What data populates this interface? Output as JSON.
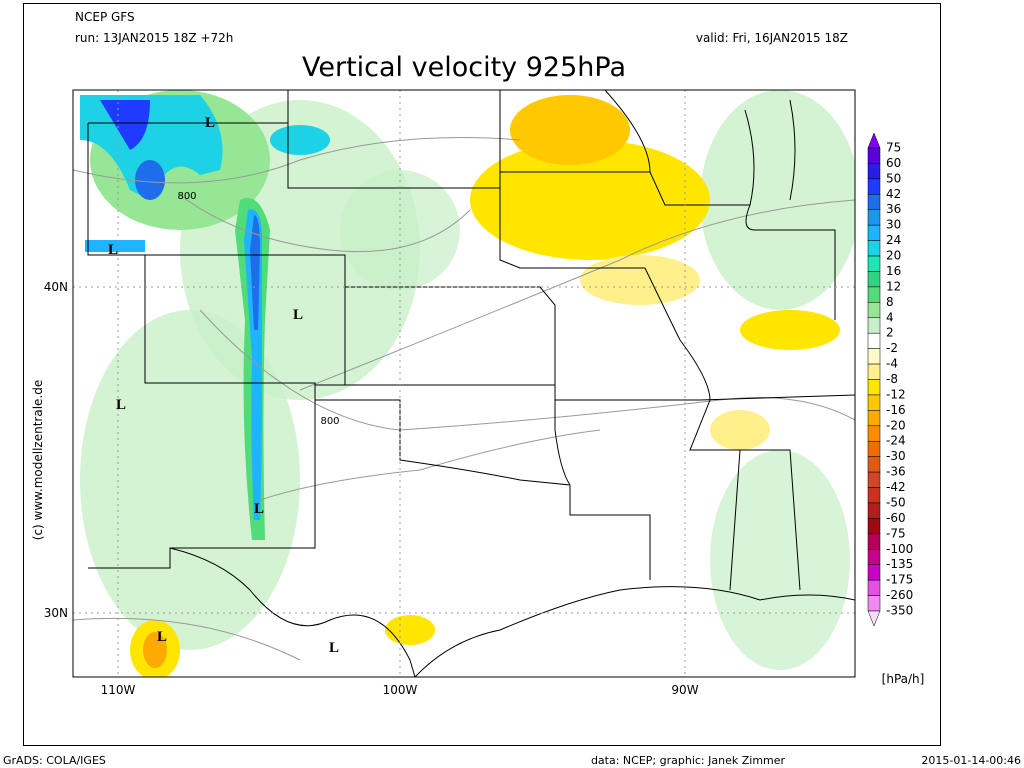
{
  "header": {
    "model": "NCEP GFS",
    "run": "run: 13JAN2015 18Z +72h",
    "valid": "valid: Fri, 16JAN2015 18Z",
    "title": "Vertical velocity 925hPa"
  },
  "map": {
    "lat_labels": [
      "40N",
      "30N"
    ],
    "lon_labels": [
      "110W",
      "100W",
      "90W"
    ],
    "contour_labels": [
      "800",
      "800"
    ],
    "low_markers": [
      "L",
      "L",
      "L",
      "L",
      "L",
      "L",
      "L"
    ],
    "copyright": "(c) www.modellzentrale.de"
  },
  "colorbar": {
    "labels": [
      75,
      60,
      50,
      42,
      36,
      30,
      24,
      20,
      16,
      12,
      8,
      4,
      2,
      -2,
      -4,
      -8,
      -12,
      -16,
      -20,
      -24,
      -30,
      -36,
      -42,
      -50,
      -60,
      -75,
      -100,
      -135,
      -175,
      -260,
      -350
    ],
    "colors": [
      "#7f00ff",
      "#5a00d8",
      "#2a1ee6",
      "#1e3cff",
      "#1e6eeb",
      "#1e96f0",
      "#1eb4ff",
      "#1ed2e6",
      "#1ee6b4",
      "#32d282",
      "#50dc78",
      "#96e696",
      "#c8f0c8",
      "#ffffff",
      "#fffac8",
      "#fff08c",
      "#ffe600",
      "#ffc800",
      "#ffaa00",
      "#ff8c00",
      "#f06e00",
      "#e05a14",
      "#d24628",
      "#c8321e",
      "#b41e1e",
      "#a00a14",
      "#b4005a",
      "#c8008c",
      "#c800c8",
      "#e650e6",
      "#f08cf0",
      "#fadcfa"
    ],
    "unit": "[hPa/h]"
  },
  "footer": {
    "left": "GrADS: COLA/IGES",
    "center": "data: NCEP; graphic: Janek Zimmer",
    "right": "2015-01-14-00:46"
  }
}
